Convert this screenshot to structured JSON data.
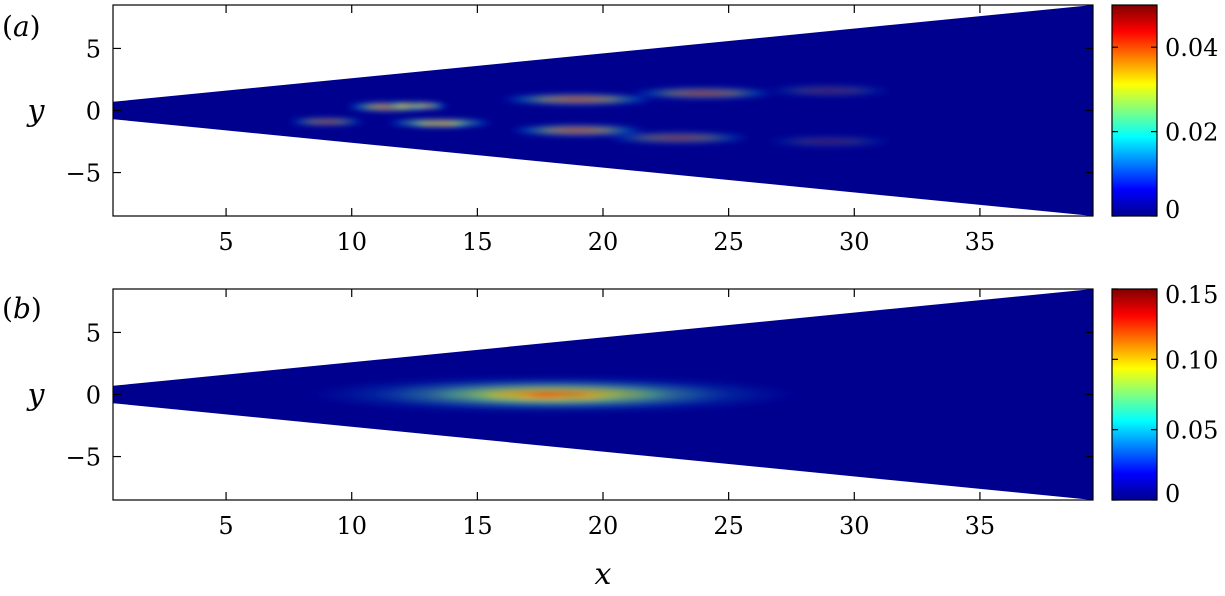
{
  "chart_data": [
    {
      "type": "heatmap",
      "panel_tag": "a",
      "xlabel": "",
      "ylabel": "y",
      "xlim": [
        0.5,
        39.5
      ],
      "ylim": [
        -8.5,
        8.5
      ],
      "xticks": [
        5,
        10,
        15,
        20,
        25,
        30,
        35
      ],
      "yticks": [
        5,
        0,
        -5
      ],
      "ytick_labels": [
        "5",
        "0",
        "−5"
      ],
      "domain_wedge": {
        "x0": 0.5,
        "half_width_at_x0": 0.7,
        "x1": 39.5,
        "half_width_at_x1": 8.5
      },
      "colorbar": {
        "range": [
          0,
          0.05
        ],
        "ticks": [
          0,
          0.02,
          0.04
        ],
        "tick_labels": [
          "0",
          "0.02",
          "0.04"
        ]
      },
      "colormap": [
        "#00008f",
        "#0000ff",
        "#0080ff",
        "#00ffff",
        "#80ff80",
        "#ffff00",
        "#ff8000",
        "#ff0000",
        "#800000"
      ],
      "features": [
        {
          "x": 9.0,
          "y": -0.9,
          "sx": 1.6,
          "sy": 0.35,
          "value": 0.014
        },
        {
          "x": 11.5,
          "y": 0.3,
          "sx": 1.8,
          "sy": 0.4,
          "value": 0.02
        },
        {
          "x": 12.5,
          "y": 0.4,
          "sx": 1.3,
          "sy": 0.3,
          "value": 0.02
        },
        {
          "x": 13.0,
          "y": 0.35,
          "sx": 0.9,
          "sy": 0.2,
          "value": 0.018
        },
        {
          "x": 13.0,
          "y": 0.4,
          "sx": 0.5,
          "sy": 0.12,
          "value": 0.016
        },
        {
          "x": 13.5,
          "y": -1.0,
          "sx": 2.2,
          "sy": 0.35,
          "value": 0.02
        },
        {
          "x": 13.5,
          "y": -1.1,
          "sx": 1.4,
          "sy": 0.22,
          "value": 0.022
        },
        {
          "x": 13.8,
          "y": -1.1,
          "sx": 0.8,
          "sy": 0.13,
          "value": 0.016
        },
        {
          "x": 19.0,
          "y": 0.9,
          "sx": 3.2,
          "sy": 0.5,
          "value": 0.016
        },
        {
          "x": 19.0,
          "y": -1.6,
          "sx": 2.8,
          "sy": 0.5,
          "value": 0.016
        },
        {
          "x": 24.0,
          "y": 1.4,
          "sx": 3.0,
          "sy": 0.5,
          "value": 0.013
        },
        {
          "x": 23.0,
          "y": -2.2,
          "sx": 3.0,
          "sy": 0.5,
          "value": 0.011
        },
        {
          "x": 29.0,
          "y": 1.6,
          "sx": 2.6,
          "sy": 0.5,
          "value": 0.006
        },
        {
          "x": 29.0,
          "y": -2.5,
          "sx": 2.6,
          "sy": 0.5,
          "value": 0.005
        }
      ]
    },
    {
      "type": "heatmap",
      "panel_tag": "b",
      "xlabel": "x",
      "ylabel": "y",
      "xlim": [
        0.5,
        39.5
      ],
      "ylim": [
        -8.5,
        8.5
      ],
      "xticks": [
        5,
        10,
        15,
        20,
        25,
        30,
        35
      ],
      "yticks": [
        5,
        0,
        -5
      ],
      "ytick_labels": [
        "5",
        "0",
        "−5"
      ],
      "domain_wedge": {
        "x0": 0.5,
        "half_width_at_x0": 0.7,
        "x1": 39.5,
        "half_width_at_x1": 8.5
      },
      "colorbar": {
        "range": [
          0,
          0.15
        ],
        "ticks": [
          0,
          0.05,
          0.1,
          0.15
        ],
        "tick_labels": [
          "0",
          "0.05",
          "0.10",
          "0.15"
        ]
      },
      "colormap": [
        "#00008f",
        "#0000ff",
        "#0080ff",
        "#00ffff",
        "#80ff80",
        "#ffff00",
        "#ff8000",
        "#ff0000",
        "#800000"
      ],
      "features": [
        {
          "x": 18.0,
          "y": 0.0,
          "sx": 10.0,
          "sy": 1.5,
          "value": 0.02
        },
        {
          "x": 18.0,
          "y": 0.0,
          "sx": 7.5,
          "sy": 1.2,
          "value": 0.03
        },
        {
          "x": 18.0,
          "y": 0.0,
          "sx": 5.5,
          "sy": 0.9,
          "value": 0.04
        },
        {
          "x": 17.8,
          "y": -0.1,
          "sx": 3.8,
          "sy": 0.6,
          "value": 0.03
        },
        {
          "x": 17.6,
          "y": -0.15,
          "sx": 1.8,
          "sy": 0.3,
          "value": 0.025
        }
      ]
    }
  ]
}
